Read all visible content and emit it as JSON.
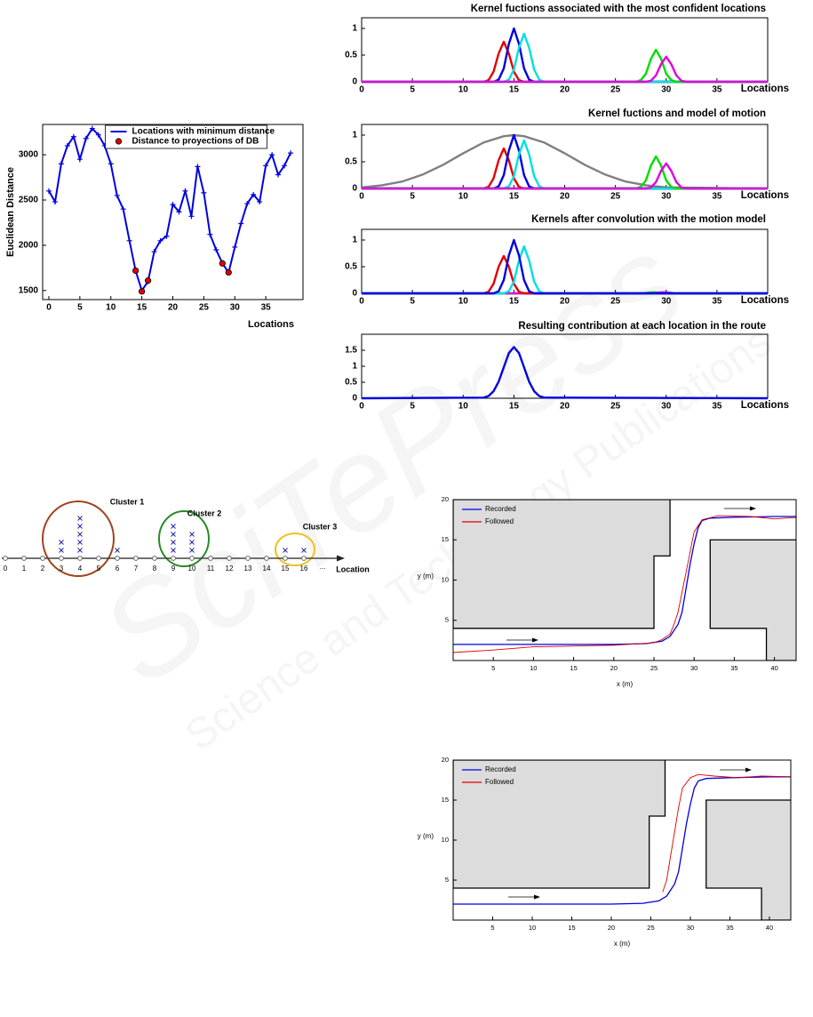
{
  "watermark": {
    "title": "SciTePress",
    "subtitle": "Science and Technology Publications"
  },
  "chart_data": [
    {
      "type": "line",
      "xlabel": "Locations",
      "ylabel": "Euclidean Distance",
      "xlim": [
        -1,
        41
      ],
      "ylim": [
        1400,
        3335
      ],
      "xticks": [
        0,
        5,
        10,
        15,
        20,
        25,
        30,
        35
      ],
      "yticks": [
        1500,
        2000,
        2500,
        3000
      ],
      "legend": "upper center",
      "series": [
        {
          "name": "Locations with minimum distance",
          "color": "#0000e0",
          "marker": "plus",
          "line": true,
          "x": [
            0,
            1,
            2,
            3,
            4,
            5,
            6,
            7,
            8,
            9,
            10,
            11,
            12,
            13,
            14,
            15,
            16,
            17,
            18,
            19,
            20,
            21,
            22,
            23,
            24,
            25,
            26,
            27,
            28,
            29,
            30,
            31,
            32,
            33,
            34,
            35,
            36,
            37,
            38,
            39
          ],
          "values": [
            2600,
            2480,
            2900,
            3100,
            3200,
            2950,
            3180,
            3290,
            3220,
            3100,
            2900,
            2550,
            2400,
            2050,
            1720,
            1500,
            1600,
            1930,
            2050,
            2100,
            2450,
            2370,
            2600,
            2320,
            2870,
            2580,
            2120,
            1950,
            1800,
            1700,
            1980,
            2240,
            2460,
            2560,
            2480,
            2880,
            3000,
            2780,
            2880,
            3020
          ]
        },
        {
          "name": "Distance to proyections of DB",
          "color": "#e00000",
          "marker": "circle",
          "line": false,
          "x": [
            14,
            15,
            16,
            28,
            29
          ],
          "values": [
            1720,
            1490,
            1610,
            1800,
            1700
          ]
        }
      ]
    },
    {
      "type": "kernel",
      "title": "Kernel fuctions associated with the most confident locations",
      "xlabel": "Locations",
      "xlim": [
        0,
        40
      ],
      "ylim": [
        0,
        1.2
      ],
      "xticks": [
        0,
        5,
        10,
        15,
        20,
        25,
        30,
        35
      ],
      "yticks": [
        0,
        0.5,
        1
      ],
      "series": [
        {
          "color": "#e00000",
          "x": [
            0,
            12,
            12.5,
            13,
            13.5,
            14,
            14.5,
            15,
            15.5,
            16,
            40
          ],
          "values": [
            0,
            0,
            0.03,
            0.19,
            0.53,
            0.75,
            0.53,
            0.19,
            0.03,
            0,
            0
          ]
        },
        {
          "color": "#0000e0",
          "x": [
            0,
            13,
            13.5,
            14,
            14.5,
            15,
            15.5,
            16,
            16.5,
            17,
            40
          ],
          "values": [
            0,
            0,
            0.04,
            0.25,
            0.71,
            1,
            0.71,
            0.25,
            0.04,
            0,
            0
          ]
        },
        {
          "color": "#00e0e0",
          "x": [
            0,
            14,
            14.5,
            15,
            15.5,
            16,
            16.5,
            17,
            17.5,
            18,
            40
          ],
          "values": [
            0,
            0,
            0.04,
            0.23,
            0.64,
            0.9,
            0.64,
            0.23,
            0.04,
            0,
            0
          ]
        },
        {
          "color": "#00dd00",
          "x": [
            0,
            27,
            27.5,
            28,
            28.5,
            29,
            29.5,
            30,
            30.5,
            31,
            40
          ],
          "values": [
            0,
            0,
            0.03,
            0.15,
            0.43,
            0.6,
            0.43,
            0.15,
            0.03,
            0,
            0
          ]
        },
        {
          "color": "#e000e0",
          "x": [
            0,
            28,
            28.5,
            29,
            29.5,
            30,
            30.5,
            31,
            31.5,
            32,
            40
          ],
          "values": [
            0,
            0,
            0.02,
            0.12,
            0.33,
            0.47,
            0.33,
            0.12,
            0.02,
            0,
            0
          ]
        }
      ]
    },
    {
      "type": "kernel",
      "title": "Kernel fuctions and model of motion",
      "xlabel": "Locations",
      "xlim": [
        0,
        40
      ],
      "ylim": [
        0,
        1.2
      ],
      "xticks": [
        0,
        5,
        10,
        15,
        20,
        25,
        30,
        35
      ],
      "yticks": [
        0,
        0.5,
        1
      ],
      "series": [
        {
          "color": "#808080",
          "x": [
            0,
            2,
            4,
            6,
            8,
            10,
            12,
            14,
            15,
            16,
            18,
            20,
            22,
            24,
            26,
            28,
            30,
            39
          ],
          "values": [
            0.02,
            0.06,
            0.13,
            0.26,
            0.44,
            0.66,
            0.86,
            0.98,
            1,
            0.98,
            0.86,
            0.66,
            0.44,
            0.26,
            0.13,
            0.06,
            0.02,
            0
          ]
        },
        {
          "color": "#e00000",
          "x": [
            0,
            12,
            12.5,
            13,
            13.5,
            14,
            14.5,
            15,
            15.5,
            16,
            40
          ],
          "values": [
            0,
            0,
            0.03,
            0.19,
            0.53,
            0.75,
            0.53,
            0.19,
            0.03,
            0,
            0
          ]
        },
        {
          "color": "#0000e0",
          "x": [
            0,
            13,
            13.5,
            14,
            14.5,
            15,
            15.5,
            16,
            16.5,
            17,
            40
          ],
          "values": [
            0,
            0,
            0.04,
            0.25,
            0.71,
            1,
            0.71,
            0.25,
            0.04,
            0,
            0
          ]
        },
        {
          "color": "#00e0e0",
          "x": [
            0,
            14,
            14.5,
            15,
            15.5,
            16,
            16.5,
            17,
            17.5,
            18,
            40
          ],
          "values": [
            0,
            0,
            0.04,
            0.23,
            0.64,
            0.9,
            0.64,
            0.23,
            0.04,
            0,
            0
          ]
        },
        {
          "color": "#00dd00",
          "x": [
            0,
            27,
            27.5,
            28,
            28.5,
            29,
            29.5,
            30,
            30.5,
            31,
            40
          ],
          "values": [
            0,
            0,
            0.03,
            0.15,
            0.43,
            0.6,
            0.43,
            0.15,
            0.03,
            0,
            0
          ]
        },
        {
          "color": "#e000e0",
          "x": [
            0,
            28,
            28.5,
            29,
            29.5,
            30,
            30.5,
            31,
            31.5,
            32,
            40
          ],
          "values": [
            0,
            0,
            0.02,
            0.12,
            0.33,
            0.47,
            0.33,
            0.12,
            0.02,
            0,
            0
          ]
        }
      ]
    },
    {
      "type": "kernel",
      "title": "Kernels after convolution with the motion model",
      "xlabel": "Locations",
      "xlim": [
        0,
        40
      ],
      "ylim": [
        0,
        1.2
      ],
      "xticks": [
        0,
        5,
        10,
        15,
        20,
        25,
        30,
        35
      ],
      "yticks": [
        0,
        0.5,
        1
      ],
      "series": [
        {
          "color": "#00dd00",
          "x": [
            0,
            27,
            27.5,
            28,
            28.5,
            29,
            29.5,
            30,
            30.5,
            31,
            40
          ],
          "values": [
            0,
            0,
            0,
            0.01,
            0.02,
            0.02,
            0.01,
            0,
            0,
            0,
            0
          ]
        },
        {
          "color": "#e000e0",
          "x": [
            0,
            28,
            28.5,
            29,
            29.5,
            30,
            30.5,
            31,
            31.5,
            32,
            40
          ],
          "values": [
            0,
            0,
            0,
            0.01,
            0.02,
            0.02,
            0.01,
            0,
            0,
            0,
            0
          ]
        },
        {
          "color": "#e00000",
          "x": [
            0,
            12,
            12.5,
            13,
            13.5,
            14,
            14.5,
            15,
            15.5,
            16,
            40
          ],
          "values": [
            0,
            0,
            0.03,
            0.18,
            0.5,
            0.7,
            0.5,
            0.18,
            0.03,
            0,
            0
          ]
        },
        {
          "color": "#00e0e0",
          "x": [
            0,
            14,
            14.5,
            15,
            15.5,
            16,
            16.5,
            17,
            17.5,
            18,
            40
          ],
          "values": [
            0,
            0,
            0.04,
            0.22,
            0.62,
            0.88,
            0.62,
            0.22,
            0.04,
            0,
            0
          ]
        },
        {
          "color": "#0000e0",
          "x": [
            0,
            13,
            13.5,
            14,
            14.5,
            15,
            15.5,
            16,
            16.5,
            17,
            40
          ],
          "values": [
            0,
            0,
            0.04,
            0.25,
            0.71,
            1,
            0.71,
            0.25,
            0.04,
            0,
            0
          ]
        }
      ]
    },
    {
      "type": "kernel",
      "title": "Resulting contribution at each location in the route",
      "xlabel": "Locations",
      "xlim": [
        0,
        40
      ],
      "ylim": [
        0,
        2
      ],
      "xticks": [
        0,
        5,
        10,
        15,
        20,
        25,
        30,
        35
      ],
      "yticks": [
        0,
        0.5,
        1,
        1.5
      ],
      "series": [
        {
          "color": "#0000e0",
          "x": [
            0,
            12,
            12.5,
            13,
            13.5,
            14,
            14.5,
            15,
            15.5,
            16,
            16.5,
            17,
            17.5,
            18,
            40
          ],
          "values": [
            0,
            0.02,
            0.07,
            0.22,
            0.52,
            0.97,
            1.41,
            1.6,
            1.41,
            0.97,
            0.52,
            0.22,
            0.07,
            0.02,
            0
          ]
        }
      ]
    },
    {
      "type": "cluster",
      "xlabel": "Location",
      "xticks": [
        0,
        1,
        2,
        3,
        4,
        5,
        6,
        7,
        8,
        9,
        10,
        11,
        12,
        13,
        14,
        15,
        16
      ],
      "end_label": "...",
      "counts": [
        0,
        0,
        0,
        2,
        5,
        0,
        1,
        0,
        0,
        4,
        3,
        0,
        0,
        0,
        0,
        1,
        1
      ],
      "mark_color": "#2020b0",
      "clusters": [
        {
          "name": "Cluster 1",
          "color": "#a0441e"
        },
        {
          "name": "Cluster 2",
          "color": "#2a8a2a"
        },
        {
          "name": "Cluster 3",
          "color": "#f0c020"
        }
      ]
    },
    {
      "type": "trajectory",
      "xlabel": "x (m)",
      "ylabel": "y (m)",
      "xlim": [
        0,
        42.7
      ],
      "ylim": [
        0,
        20
      ],
      "xticks": [
        5,
        10,
        15,
        20,
        25,
        30,
        35,
        40
      ],
      "yticks": [
        5,
        10,
        15,
        20
      ],
      "legend": "upper left",
      "wall_color": "#dcdcdc",
      "walls": [
        [
          [
            0,
            4
          ],
          [
            25,
            4
          ],
          [
            25,
            13
          ],
          [
            27,
            13
          ],
          [
            27,
            20
          ],
          [
            0,
            20
          ]
        ],
        [
          [
            32,
            15
          ],
          [
            43,
            15
          ],
          [
            43,
            0
          ],
          [
            39,
            0
          ],
          [
            39,
            4
          ],
          [
            32,
            4
          ]
        ]
      ],
      "series": [
        {
          "name": "Recorded",
          "color": "#0000e0",
          "x": [
            0,
            20,
            24,
            26,
            27,
            28,
            28.5,
            29,
            29.5,
            30,
            30.5,
            31,
            32,
            35,
            40,
            43
          ],
          "values": [
            2,
            2,
            2.1,
            2.4,
            3,
            4.5,
            6,
            9,
            12,
            14.5,
            16.5,
            17.4,
            17.7,
            17.8,
            17.9,
            17.9
          ]
        },
        {
          "name": "Followed",
          "color": "#e00000",
          "x": [
            0,
            5,
            10,
            15,
            20,
            25,
            26,
            27,
            27.5,
            28,
            28.5,
            29,
            29.5,
            30,
            31,
            33,
            37,
            40,
            43
          ],
          "values": [
            1,
            1.3,
            1.7,
            1.8,
            1.9,
            2.2,
            2.6,
            3.3,
            4.5,
            6,
            8.5,
            11,
            13.5,
            16,
            17.5,
            18,
            17.9,
            17.6,
            17.8
          ]
        }
      ]
    },
    {
      "type": "trajectory",
      "xlabel": "x (m)",
      "ylabel": "y (m)",
      "xlim": [
        0,
        42.7
      ],
      "ylim": [
        0,
        20
      ],
      "xticks": [
        5,
        10,
        15,
        20,
        25,
        30,
        35,
        40
      ],
      "yticks": [
        5,
        10,
        15,
        20
      ],
      "legend": "upper left",
      "wall_color": "#dcdcdc",
      "walls": [
        [
          [
            0,
            4
          ],
          [
            24.8,
            4
          ],
          [
            24.8,
            13
          ],
          [
            26.8,
            13
          ],
          [
            26.8,
            20
          ],
          [
            0,
            20
          ]
        ],
        [
          [
            32,
            15
          ],
          [
            43,
            15
          ],
          [
            43,
            0
          ],
          [
            39,
            0
          ],
          [
            39,
            4
          ],
          [
            32,
            4
          ]
        ]
      ],
      "series": [
        {
          "name": "Recorded",
          "color": "#0000e0",
          "x": [
            0,
            20,
            24,
            26,
            27,
            28,
            28.5,
            29,
            29.5,
            30,
            30.5,
            31,
            32,
            35,
            40,
            43
          ],
          "values": [
            2,
            2,
            2.1,
            2.4,
            3,
            4.5,
            6,
            9,
            12,
            14.5,
            16.5,
            17.4,
            17.7,
            17.8,
            17.9,
            17.9
          ]
        },
        {
          "name": "Followed",
          "color": "#e00000",
          "x": [
            26.5,
            27,
            27.5,
            28,
            28.5,
            29,
            30,
            31,
            33,
            36,
            39,
            43
          ],
          "values": [
            3.5,
            5,
            8,
            11,
            14,
            16.5,
            17.8,
            18.2,
            18,
            17.8,
            18,
            17.9
          ]
        }
      ]
    }
  ]
}
